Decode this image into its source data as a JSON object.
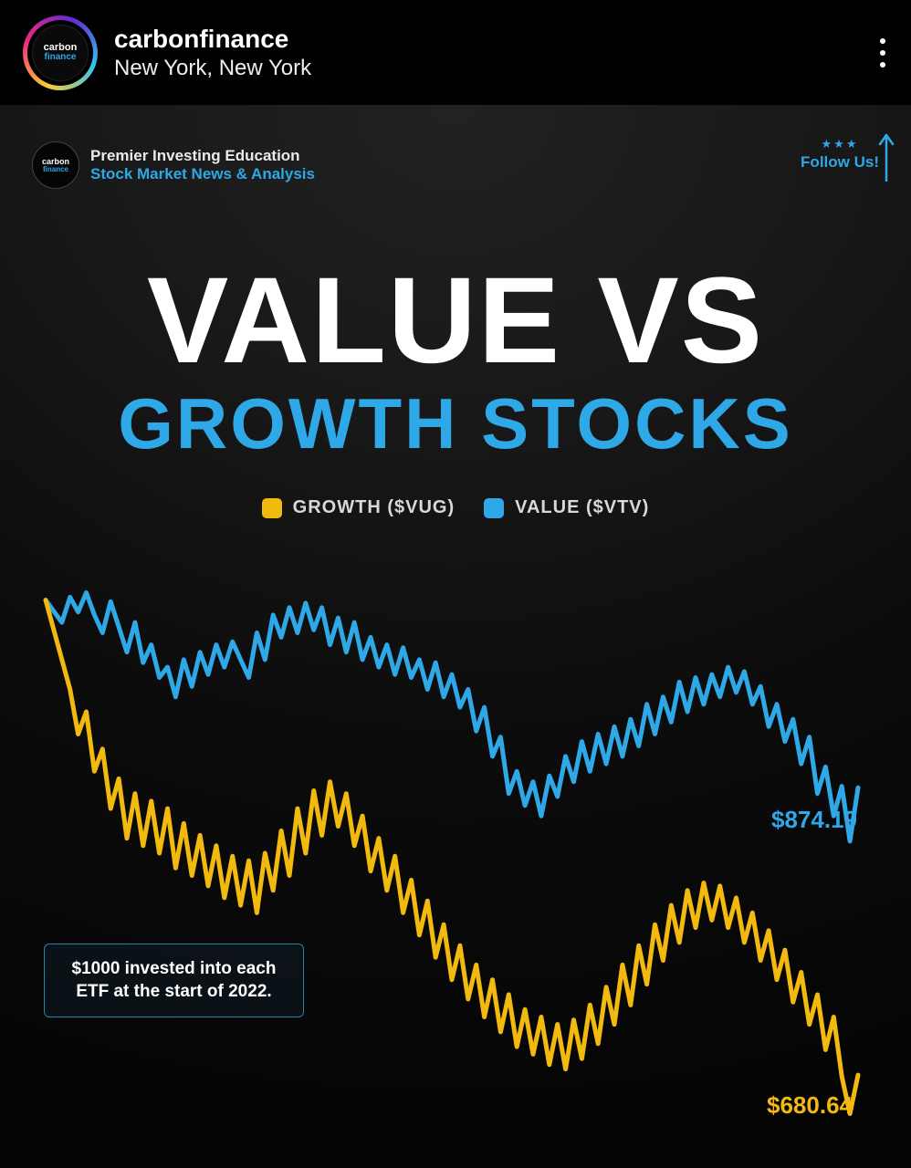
{
  "topbar": {
    "username": "carbonfinance",
    "location": "New York, New York",
    "logo_line1": "carbon",
    "logo_line2": "finance"
  },
  "card_header": {
    "logo_line1": "carbon",
    "logo_line2": "finance",
    "line1": "Premier Investing Education",
    "line2": "Stock Market News & Analysis"
  },
  "follow": {
    "stars": "★★★",
    "label": "Follow Us!",
    "arrow_color": "#2ea8e6"
  },
  "title": {
    "line1": "VALUE VS",
    "line2": "GROWTH STOCKS",
    "line1_color": "#ffffff",
    "line2_color": "#2ea8e6",
    "line1_fontsize": 134,
    "line2_fontsize": 78
  },
  "legend": {
    "items": [
      {
        "label": "GROWTH ($VUG)",
        "color": "#f2b90f"
      },
      {
        "label": "VALUE ($VTV)",
        "color": "#2ea8e6"
      }
    ]
  },
  "chart": {
    "type": "line",
    "background_color": "transparent",
    "line_width": 5,
    "x_range": [
      0,
      100
    ],
    "y_range_dollars": [
      640,
      1020
    ],
    "series": [
      {
        "name": "VALUE ($VTV)",
        "color": "#2ea8e6",
        "end_label": "$874.19",
        "end_label_color": "#2ea8e6",
        "points": [
          [
            0,
            1000
          ],
          [
            2,
            985
          ],
          [
            3,
            1002
          ],
          [
            4,
            992
          ],
          [
            5,
            1005
          ],
          [
            6,
            990
          ],
          [
            7,
            978
          ],
          [
            8,
            999
          ],
          [
            10,
            965
          ],
          [
            11,
            985
          ],
          [
            12,
            958
          ],
          [
            13,
            970
          ],
          [
            14,
            948
          ],
          [
            15,
            955
          ],
          [
            16,
            935
          ],
          [
            17,
            960
          ],
          [
            18,
            942
          ],
          [
            19,
            965
          ],
          [
            20,
            950
          ],
          [
            21,
            970
          ],
          [
            22,
            955
          ],
          [
            23,
            972
          ],
          [
            25,
            948
          ],
          [
            26,
            978
          ],
          [
            27,
            960
          ],
          [
            28,
            990
          ],
          [
            29,
            975
          ],
          [
            30,
            995
          ],
          [
            31,
            978
          ],
          [
            32,
            998
          ],
          [
            33,
            980
          ],
          [
            34,
            995
          ],
          [
            35,
            970
          ],
          [
            36,
            988
          ],
          [
            37,
            965
          ],
          [
            38,
            985
          ],
          [
            39,
            960
          ],
          [
            40,
            975
          ],
          [
            41,
            955
          ],
          [
            42,
            970
          ],
          [
            43,
            950
          ],
          [
            44,
            968
          ],
          [
            45,
            948
          ],
          [
            46,
            960
          ],
          [
            47,
            940
          ],
          [
            48,
            958
          ],
          [
            49,
            935
          ],
          [
            50,
            950
          ],
          [
            51,
            928
          ],
          [
            52,
            940
          ],
          [
            53,
            912
          ],
          [
            54,
            928
          ],
          [
            55,
            895
          ],
          [
            56,
            908
          ],
          [
            57,
            870
          ],
          [
            58,
            885
          ],
          [
            59,
            862
          ],
          [
            60,
            878
          ],
          [
            61,
            855
          ],
          [
            62,
            882
          ],
          [
            63,
            868
          ],
          [
            64,
            895
          ],
          [
            65,
            878
          ],
          [
            66,
            905
          ],
          [
            67,
            885
          ],
          [
            68,
            910
          ],
          [
            69,
            890
          ],
          [
            70,
            915
          ],
          [
            71,
            895
          ],
          [
            72,
            920
          ],
          [
            73,
            902
          ],
          [
            74,
            930
          ],
          [
            75,
            910
          ],
          [
            76,
            935
          ],
          [
            77,
            918
          ],
          [
            78,
            945
          ],
          [
            79,
            925
          ],
          [
            80,
            948
          ],
          [
            81,
            930
          ],
          [
            82,
            950
          ],
          [
            83,
            935
          ],
          [
            84,
            955
          ],
          [
            85,
            938
          ],
          [
            86,
            952
          ],
          [
            87,
            930
          ],
          [
            88,
            942
          ],
          [
            89,
            915
          ],
          [
            90,
            930
          ],
          [
            91,
            905
          ],
          [
            92,
            920
          ],
          [
            93,
            890
          ],
          [
            94,
            908
          ],
          [
            95,
            870
          ],
          [
            96,
            888
          ],
          [
            97,
            855
          ],
          [
            98,
            875
          ],
          [
            99,
            838
          ],
          [
            100,
            874
          ]
        ]
      },
      {
        "name": "GROWTH ($VUG)",
        "color": "#f2b90f",
        "end_label": "$680.64",
        "end_label_color": "#f2b90f",
        "points": [
          [
            0,
            1000
          ],
          [
            2,
            960
          ],
          [
            3,
            940
          ],
          [
            4,
            910
          ],
          [
            5,
            925
          ],
          [
            6,
            885
          ],
          [
            7,
            900
          ],
          [
            8,
            860
          ],
          [
            9,
            880
          ],
          [
            10,
            840
          ],
          [
            11,
            870
          ],
          [
            12,
            835
          ],
          [
            13,
            865
          ],
          [
            14,
            830
          ],
          [
            15,
            860
          ],
          [
            16,
            820
          ],
          [
            17,
            850
          ],
          [
            18,
            815
          ],
          [
            19,
            842
          ],
          [
            20,
            808
          ],
          [
            21,
            835
          ],
          [
            22,
            800
          ],
          [
            23,
            828
          ],
          [
            24,
            795
          ],
          [
            25,
            825
          ],
          [
            26,
            790
          ],
          [
            27,
            830
          ],
          [
            28,
            805
          ],
          [
            29,
            845
          ],
          [
            30,
            815
          ],
          [
            31,
            860
          ],
          [
            32,
            830
          ],
          [
            33,
            872
          ],
          [
            34,
            842
          ],
          [
            35,
            878
          ],
          [
            36,
            848
          ],
          [
            37,
            870
          ],
          [
            38,
            835
          ],
          [
            39,
            855
          ],
          [
            40,
            818
          ],
          [
            41,
            840
          ],
          [
            42,
            805
          ],
          [
            43,
            828
          ],
          [
            44,
            790
          ],
          [
            45,
            812
          ],
          [
            46,
            775
          ],
          [
            47,
            798
          ],
          [
            48,
            760
          ],
          [
            49,
            782
          ],
          [
            50,
            745
          ],
          [
            51,
            768
          ],
          [
            52,
            732
          ],
          [
            53,
            755
          ],
          [
            54,
            720
          ],
          [
            55,
            745
          ],
          [
            56,
            710
          ],
          [
            57,
            735
          ],
          [
            58,
            700
          ],
          [
            59,
            725
          ],
          [
            60,
            695
          ],
          [
            61,
            720
          ],
          [
            62,
            688
          ],
          [
            63,
            715
          ],
          [
            64,
            685
          ],
          [
            65,
            718
          ],
          [
            66,
            692
          ],
          [
            67,
            728
          ],
          [
            68,
            702
          ],
          [
            69,
            740
          ],
          [
            70,
            715
          ],
          [
            71,
            755
          ],
          [
            72,
            728
          ],
          [
            73,
            768
          ],
          [
            74,
            742
          ],
          [
            75,
            782
          ],
          [
            76,
            758
          ],
          [
            77,
            795
          ],
          [
            78,
            770
          ],
          [
            79,
            805
          ],
          [
            80,
            780
          ],
          [
            81,
            810
          ],
          [
            82,
            785
          ],
          [
            83,
            808
          ],
          [
            84,
            780
          ],
          [
            85,
            800
          ],
          [
            86,
            770
          ],
          [
            87,
            790
          ],
          [
            88,
            758
          ],
          [
            89,
            778
          ],
          [
            90,
            745
          ],
          [
            91,
            765
          ],
          [
            92,
            730
          ],
          [
            93,
            750
          ],
          [
            94,
            715
          ],
          [
            95,
            735
          ],
          [
            96,
            698
          ],
          [
            97,
            720
          ],
          [
            98,
            680
          ],
          [
            99,
            655
          ],
          [
            100,
            681
          ]
        ]
      }
    ]
  },
  "note": {
    "text": "$1000 invested into each ETF at the start of 2022.",
    "border_color": "#2b7fa8"
  }
}
